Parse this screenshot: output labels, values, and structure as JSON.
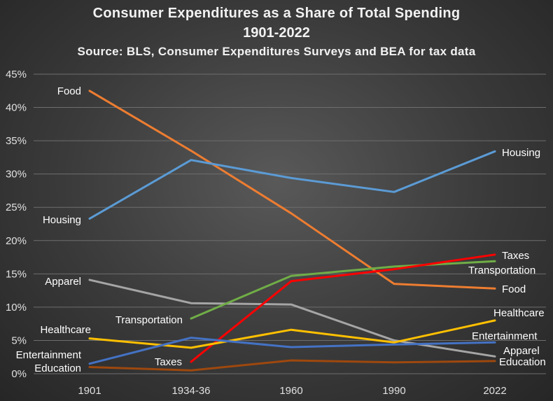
{
  "chart_data": {
    "type": "line",
    "title": "Consumer Expenditures as a Share of Total Spending",
    "subtitle": "1901-2022",
    "source": "Source: BLS, Consumer Expenditures Surveys and BEA for tax data",
    "categories": [
      "1901",
      "1934-36",
      "1960",
      "1990",
      "2022"
    ],
    "ylim": [
      0,
      45
    ],
    "yticks": [
      "0%",
      "5%",
      "10%",
      "15%",
      "20%",
      "25%",
      "30%",
      "35%",
      "40%",
      "45%"
    ],
    "grid": true,
    "legend": "none (direct labels)",
    "series": [
      {
        "name": "Food",
        "color": "#ed7d31",
        "values": [
          42.5,
          33.5,
          24.1,
          13.5,
          12.8
        ]
      },
      {
        "name": "Housing",
        "color": "#5b9bd5",
        "values": [
          23.3,
          32.1,
          29.4,
          27.3,
          33.4
        ]
      },
      {
        "name": "Apparel",
        "color": "#a5a5a5",
        "values": [
          14.1,
          10.6,
          10.4,
          5.0,
          2.6
        ]
      },
      {
        "name": "Transportation",
        "color": "#70ad47",
        "values": [
          null,
          8.3,
          14.7,
          16.1,
          16.9
        ]
      },
      {
        "name": "Taxes",
        "color": "#ff0000",
        "values": [
          null,
          1.8,
          13.9,
          15.7,
          17.9
        ]
      },
      {
        "name": "Healthcare",
        "color": "#ffc000",
        "values": [
          5.3,
          3.9,
          6.6,
          4.7,
          8.0
        ]
      },
      {
        "name": "Entertainment",
        "color": "#4472c4",
        "values": [
          1.5,
          5.4,
          4.0,
          4.4,
          4.7
        ]
      },
      {
        "name": "Education",
        "color": "#9e480e",
        "values": [
          1.0,
          0.5,
          2.0,
          1.7,
          1.9
        ]
      }
    ],
    "labels": [
      {
        "text": "Food",
        "series": "Food",
        "at": "start",
        "color": "#ffffff"
      },
      {
        "text": "Housing",
        "series": "Housing",
        "at": "start",
        "color": "#ffffff"
      },
      {
        "text": "Apparel",
        "series": "Apparel",
        "at": "start",
        "color": "#ffffff"
      },
      {
        "text": "Healthcare",
        "series": "Healthcare",
        "at": "start",
        "color": "#ffffff"
      },
      {
        "text": "Entertainment",
        "series": "Entertainment",
        "at": "start",
        "color": "#ffffff"
      },
      {
        "text": "Education",
        "series": "Education",
        "at": "start",
        "color": "#ffffff"
      },
      {
        "text": "Transportation",
        "series": "Transportation",
        "at": "start",
        "color": "#ffffff"
      },
      {
        "text": "Taxes",
        "series": "Taxes",
        "at": "start",
        "color": "#ffffff"
      },
      {
        "text": "Housing",
        "series": "Housing",
        "at": "end",
        "color": "#ffffff"
      },
      {
        "text": "Taxes",
        "series": "Taxes",
        "at": "end",
        "color": "#ffffff"
      },
      {
        "text": "Transportation",
        "series": "Transportation",
        "at": "end",
        "color": "#ffffff"
      },
      {
        "text": "Food",
        "series": "Food",
        "at": "end",
        "color": "#ffffff"
      },
      {
        "text": "Healthcare",
        "series": "Healthcare",
        "at": "end",
        "color": "#ffffff"
      },
      {
        "text": "Entertainment",
        "series": "Entertainment",
        "at": "end",
        "color": "#ffffff"
      },
      {
        "text": "Apparel",
        "series": "Apparel",
        "at": "end",
        "color": "#ffffff"
      },
      {
        "text": "Education",
        "series": "Education",
        "at": "end",
        "color": "#ffffff"
      }
    ]
  }
}
